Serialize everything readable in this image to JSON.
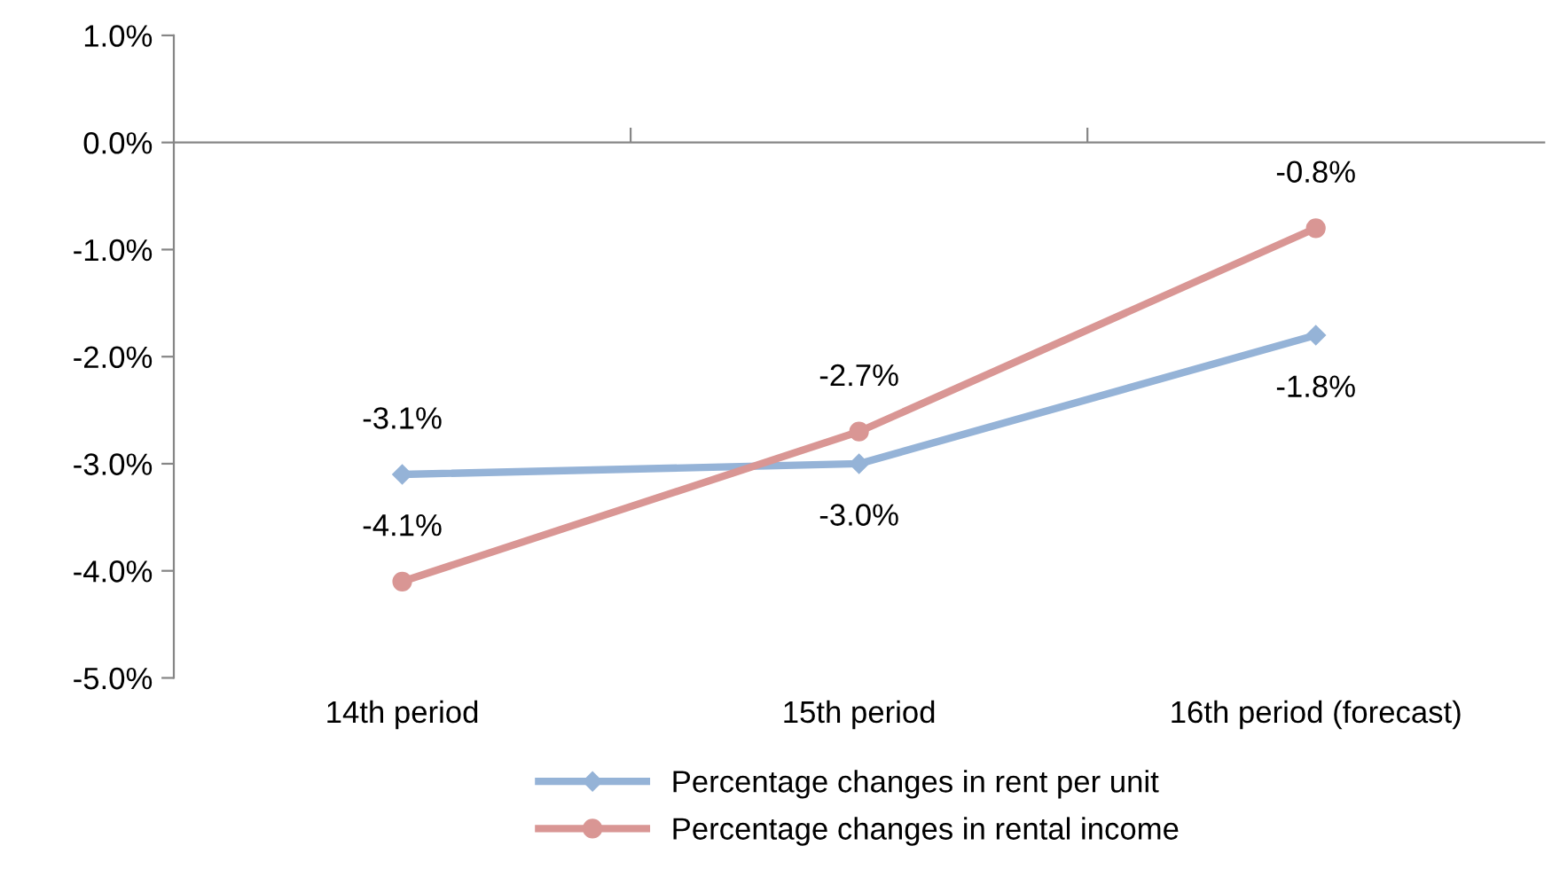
{
  "chart_data": {
    "type": "line",
    "categories": [
      "14th period",
      "15th period",
      "16th period (forecast)"
    ],
    "series": [
      {
        "name": "Percentage changes in rent per unit",
        "color": "#95b3d7",
        "marker": "diamond",
        "values": [
          -3.1,
          -3.0,
          -1.8
        ],
        "value_labels": [
          "-3.1%",
          "-3.0%",
          "-1.8%"
        ]
      },
      {
        "name": "Percentage changes in rental income",
        "color": "#d99694",
        "marker": "circle",
        "values": [
          -4.1,
          -2.7,
          -0.8
        ],
        "value_labels": [
          "-4.1%",
          "-2.7%",
          "-0.8%"
        ]
      }
    ],
    "ylim": [
      -5,
      1
    ],
    "yticks": [
      {
        "value": -5,
        "label": "-5.0%"
      },
      {
        "value": -4,
        "label": "-4.0%"
      },
      {
        "value": -3,
        "label": "-3.0%"
      },
      {
        "value": -2,
        "label": "-2.0%"
      },
      {
        "value": -1,
        "label": "-1.0%"
      },
      {
        "value": 0,
        "label": "0.0%"
      },
      {
        "value": 1,
        "label": "1.0%"
      }
    ],
    "legend": "bottom",
    "line_style": "solid"
  }
}
